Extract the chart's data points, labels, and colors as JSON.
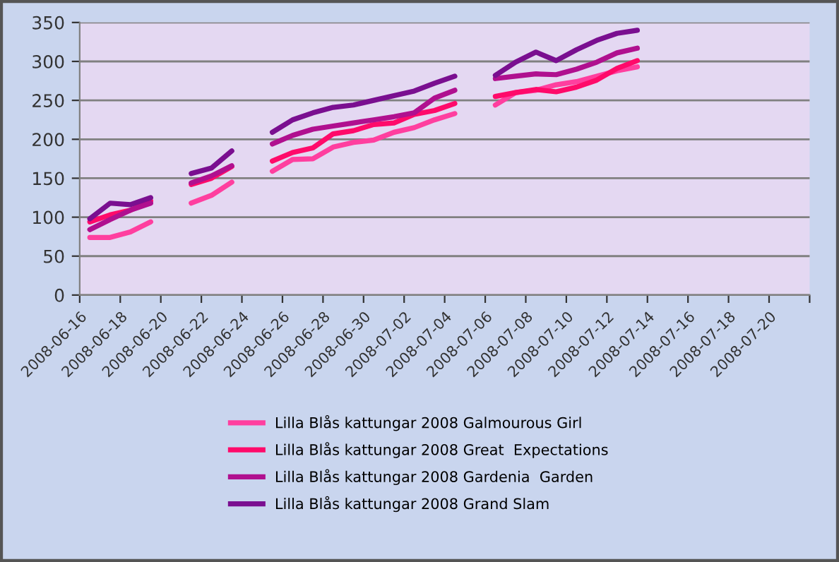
{
  "chart_data": {
    "type": "line",
    "x": [
      "2008-06-16T12:00",
      "2008-06-17T12:00",
      "2008-06-18T12:00",
      "2008-06-19T12:00",
      "2008-06-20T12:00",
      "2008-06-21T12:00",
      "2008-06-22T12:00",
      "2008-06-23T12:00",
      "2008-06-24T12:00",
      "2008-06-25T12:00",
      "2008-06-26T12:00",
      "2008-06-27T12:00",
      "2008-06-28T12:00",
      "2008-06-29T12:00",
      "2008-06-30T12:00",
      "2008-07-01T12:00",
      "2008-07-02T12:00",
      "2008-07-03T12:00",
      "2008-07-04T12:00",
      "2008-07-05T12:00",
      "2008-07-06T12:00",
      "2008-07-07T12:00",
      "2008-07-08T12:00",
      "2008-07-09T12:00",
      "2008-07-10T12:00",
      "2008-07-11T12:00",
      "2008-07-12T12:00",
      "2008-07-13T12:00"
    ],
    "series": [
      {
        "name": "Lilla Blås kattungar 2008 Galmourous Girl",
        "color": "#ff3f9f",
        "values": [
          74,
          74,
          81,
          94,
          null,
          118,
          128,
          145,
          null,
          159,
          174,
          175,
          190,
          196,
          199,
          209,
          215,
          225,
          233,
          null,
          244,
          260,
          263,
          270,
          274,
          281,
          288,
          293
        ]
      },
      {
        "name": "Lilla Blås kattungar 2008 Great  Expectations",
        "color": "#ff0a6a",
        "values": [
          94,
          103,
          109,
          121,
          null,
          142,
          150,
          165,
          null,
          172,
          183,
          189,
          207,
          211,
          219,
          221,
          232,
          237,
          246,
          null,
          255,
          260,
          264,
          261,
          267,
          276,
          291,
          301
        ]
      },
      {
        "name": "Lilla Blås kattungar 2008 Gardenia  Garden",
        "color": "#b0108f",
        "values": [
          84,
          97,
          109,
          118,
          null,
          144,
          153,
          166,
          null,
          194,
          205,
          213,
          217,
          221,
          225,
          229,
          234,
          253,
          263,
          null,
          278,
          281,
          284,
          283,
          290,
          299,
          311,
          317
        ]
      },
      {
        "name": "Lilla Blås kattungar 2008 Grand Slam",
        "color": "#7a0f90",
        "values": [
          98,
          118,
          116,
          125,
          null,
          156,
          163,
          185,
          null,
          209,
          225,
          234,
          241,
          244,
          250,
          256,
          262,
          272,
          281,
          null,
          282,
          299,
          312,
          301,
          315,
          327,
          336,
          340
        ]
      }
    ],
    "xlim": [
      "2008-06-16",
      "2008-07-22"
    ],
    "xticks": [
      "2008-06-16",
      "2008-06-18",
      "2008-06-20",
      "2008-06-22",
      "2008-06-24",
      "2008-06-26",
      "2008-06-28",
      "2008-06-30",
      "2008-07-02",
      "2008-07-04",
      "2008-07-06",
      "2008-07-08",
      "2008-07-10",
      "2008-07-12",
      "2008-07-14",
      "2008-07-16",
      "2008-07-18",
      "2008-07-20",
      {
        "value": "2008-07-22",
        "label": null
      }
    ],
    "ylim": [
      0,
      350
    ],
    "yticks": [
      0,
      50,
      100,
      150,
      200,
      250,
      300,
      350
    ],
    "grid": "y",
    "legend": "bottom",
    "marker": "none",
    "line_style": "solid"
  }
}
